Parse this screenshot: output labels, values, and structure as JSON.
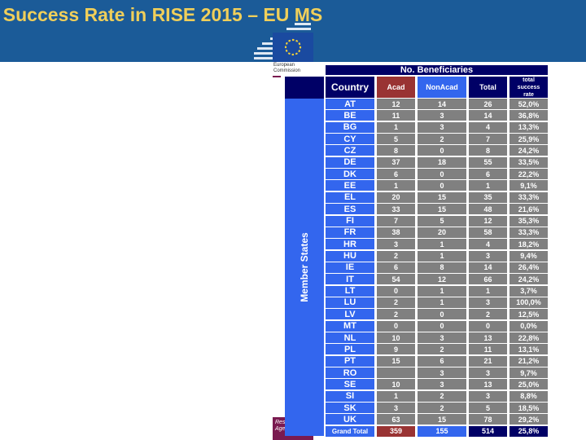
{
  "title": "Success Rate in RISE 2015 – EU MS",
  "logo": {
    "ec_text": "European Commission",
    "rea_text": "Res Exe Agency"
  },
  "table": {
    "group_header": "No. Beneficiaries",
    "side_label": "Member States",
    "columns": [
      "Country",
      "Acad",
      "NonAcad",
      "Total",
      "total success rate"
    ],
    "colors": {
      "country": "#3366ee",
      "acad": "#993333",
      "nonacad": "#3366ee",
      "total": "#000066",
      "data": "#808080"
    },
    "rows": [
      [
        "AT",
        "12",
        "14",
        "26",
        "52,0%"
      ],
      [
        "BE",
        "11",
        "3",
        "14",
        "36,8%"
      ],
      [
        "BG",
        "1",
        "3",
        "4",
        "13,3%"
      ],
      [
        "CY",
        "5",
        "2",
        "7",
        "25,9%"
      ],
      [
        "CZ",
        "8",
        "0",
        "8",
        "24,2%"
      ],
      [
        "DE",
        "37",
        "18",
        "55",
        "33,5%"
      ],
      [
        "DK",
        "6",
        "0",
        "6",
        "22,2%"
      ],
      [
        "EE",
        "1",
        "0",
        "1",
        "9,1%"
      ],
      [
        "EL",
        "20",
        "15",
        "35",
        "33,3%"
      ],
      [
        "ES",
        "33",
        "15",
        "48",
        "21,6%"
      ],
      [
        "FI",
        "7",
        "5",
        "12",
        "35,3%"
      ],
      [
        "FR",
        "38",
        "20",
        "58",
        "33,3%"
      ],
      [
        "HR",
        "3",
        "1",
        "4",
        "18,2%"
      ],
      [
        "HU",
        "2",
        "1",
        "3",
        "9,4%"
      ],
      [
        "IE",
        "6",
        "8",
        "14",
        "26,4%"
      ],
      [
        "IT",
        "54",
        "12",
        "66",
        "24,2%"
      ],
      [
        "LT",
        "0",
        "1",
        "1",
        "3,7%"
      ],
      [
        "LU",
        "2",
        "1",
        "3",
        "100,0%"
      ],
      [
        "LV",
        "2",
        "0",
        "2",
        "12,5%"
      ],
      [
        "MT",
        "0",
        "0",
        "0",
        "0,0%"
      ],
      [
        "NL",
        "10",
        "3",
        "13",
        "22,8%"
      ],
      [
        "PL",
        "9",
        "2",
        "11",
        "13,1%"
      ],
      [
        "PT",
        "15",
        "6",
        "21",
        "21,2%"
      ],
      [
        "RO",
        "",
        "3",
        "3",
        "9,7%"
      ],
      [
        "SE",
        "10",
        "3",
        "13",
        "25,0%"
      ],
      [
        "SI",
        "1",
        "2",
        "3",
        "8,8%"
      ],
      [
        "SK",
        "3",
        "2",
        "5",
        "18,5%"
      ],
      [
        "UK",
        "63",
        "15",
        "78",
        "29,2%"
      ]
    ],
    "grand_total": [
      "Grand Total",
      "359",
      "155",
      "514",
      "25,8%"
    ]
  }
}
